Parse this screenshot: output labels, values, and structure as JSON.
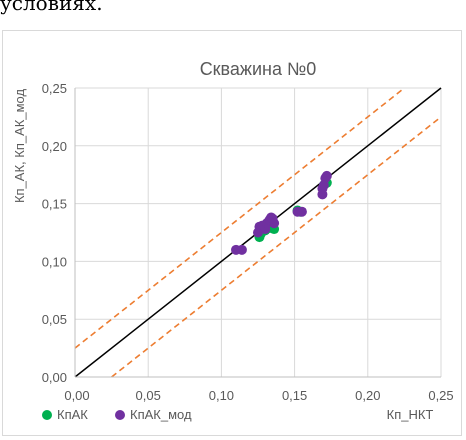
{
  "page_fragment": "условиях.",
  "chart_data": {
    "type": "scatter",
    "title": "Скважина №0",
    "xlabel": "Кп_НКТ",
    "ylabel": "Кп_АК, Кп_АК_мод",
    "xlim": [
      0,
      0.25
    ],
    "ylim": [
      0,
      0.25
    ],
    "x_ticks": [
      "0,00",
      "0,05",
      "0,10",
      "0,15",
      "0,20",
      "0,25"
    ],
    "y_ticks": [
      "0,00",
      "0,05",
      "0,10",
      "0,15",
      "0,20",
      "0,25"
    ],
    "grid": true,
    "legend_position": "bottom-left",
    "series": [
      {
        "name": "КпАК",
        "color": "#00b050",
        "points": [
          [
            0.126,
            0.121
          ],
          [
            0.127,
            0.124
          ],
          [
            0.128,
            0.13
          ],
          [
            0.13,
            0.127
          ],
          [
            0.132,
            0.131
          ],
          [
            0.133,
            0.129
          ],
          [
            0.135,
            0.132
          ],
          [
            0.136,
            0.128
          ],
          [
            0.152,
            0.144
          ],
          [
            0.154,
            0.143
          ],
          [
            0.17,
            0.166
          ],
          [
            0.172,
            0.168
          ]
        ]
      },
      {
        "name": "КпАК_мод",
        "color": "#7030a0",
        "points": [
          [
            0.11,
            0.11
          ],
          [
            0.114,
            0.11
          ],
          [
            0.125,
            0.125
          ],
          [
            0.126,
            0.13
          ],
          [
            0.128,
            0.131
          ],
          [
            0.13,
            0.128
          ],
          [
            0.131,
            0.133
          ],
          [
            0.132,
            0.134
          ],
          [
            0.133,
            0.136
          ],
          [
            0.134,
            0.138
          ],
          [
            0.135,
            0.137
          ],
          [
            0.136,
            0.133
          ],
          [
            0.152,
            0.143
          ],
          [
            0.155,
            0.143
          ],
          [
            0.169,
            0.158
          ],
          [
            0.169,
            0.163
          ],
          [
            0.17,
            0.166
          ],
          [
            0.171,
            0.172
          ],
          [
            0.172,
            0.174
          ]
        ]
      }
    ],
    "reference_lines": [
      {
        "style": "solid",
        "color": "#000000",
        "points": [
          [
            0,
            0
          ],
          [
            0.25,
            0.25
          ]
        ]
      },
      {
        "style": "dashed",
        "color": "#ed7d31",
        "points": [
          [
            0,
            0.025
          ],
          [
            0.225,
            0.25
          ]
        ]
      },
      {
        "style": "dashed",
        "color": "#ed7d31",
        "points": [
          [
            0.025,
            0
          ],
          [
            0.25,
            0.225
          ]
        ]
      }
    ]
  }
}
